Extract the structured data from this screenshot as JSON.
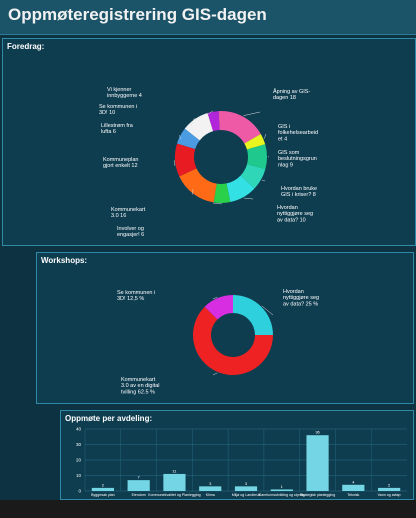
{
  "app": {
    "title": "Oppmøteregistrering GIS-dagen"
  },
  "panels": {
    "foredrag": {
      "label": "Foredrag:"
    },
    "workshops": {
      "label": "Workshops:"
    },
    "oppmote": {
      "label": "Oppmøte per avdeling:"
    }
  },
  "chart_data": [
    {
      "type": "pie",
      "donut": true,
      "title": "Foredrag:",
      "categories": [
        "Åpning av GIS-dagen",
        "GIS i folkehelsearbeid",
        "GIS som beslutningsgrunnlag",
        "Hvordan bruke GIS i kriser?",
        "Hvordan nyttiggjøre seg av data?",
        "Involver og engasjer!",
        "Kommunekart 3.0",
        "Kommuneplan gjort enkelt",
        "Lillestrøm fra lufta",
        "Se kommunen i 3D!",
        "Vi kjenner innbyggerne"
      ],
      "labels": [
        "Åpning av GIS-\ndagen 18",
        "GIS i\nfolkehelsearbeid\net 4",
        "GIS som\nbeslutningsgrun\nnlag 9",
        "Hvordan bruke\nGIS i kriser? 8",
        "Hvordan\nnyttiggjøre seg\nav data? 10",
        "Involver og\nengasjer! 6",
        "Kommunekart\n3.0 16",
        "Kommuneplan\ngjort enkelt 12",
        "Lillestrøm fra\nlufta 6",
        "Se kommunen i\n3D! 10",
        "Vi kjenner\ninnbyggerne 4"
      ],
      "values": [
        18,
        4,
        9,
        8,
        10,
        6,
        16,
        12,
        6,
        10,
        4
      ],
      "colors": [
        "#ee5aa5",
        "#e9f51e",
        "#1fc98d",
        "#2fd7b8",
        "#33e0e3",
        "#2ad04a",
        "#ff6a16",
        "#e81a22",
        "#4b9be3",
        "#f2f2f2",
        "#b126d9"
      ]
    },
    {
      "type": "pie",
      "donut": true,
      "title": "Workshops:",
      "categories": [
        "Hvordan nyttiggjøre seg av data?",
        "Kommunekart 3.0 av en digital tvilling",
        "Se kommunen i 3D!"
      ],
      "labels": [
        "Hvordan\nnyttiggjøre seg\nav data? 25 %",
        "Kommunekart\n3.0 av en digital\ntvilling 62.5 %",
        "Se kommunen i\n3D! 12,5 %"
      ],
      "values": [
        25,
        62.5,
        12.5
      ],
      "colors": [
        "#2fd0dd",
        "#ee2222",
        "#d62ee0"
      ]
    },
    {
      "type": "bar",
      "title": "Oppmøte per avdeling:",
      "ylim": [
        0,
        40
      ],
      "yticks": [
        0,
        10,
        20,
        30,
        40
      ],
      "categories": [
        "Byggesak plan",
        "Eiendom",
        "Kommunekvalitet og Planlegging",
        "Klima",
        "Miljø og Landbruk",
        "Samfunnsutvikling og styring",
        "Strategisk planlegging",
        "Teknisk",
        "Vann og avløp"
      ],
      "values": [
        2,
        7,
        11,
        3,
        3,
        1,
        36,
        4,
        2
      ]
    }
  ]
}
